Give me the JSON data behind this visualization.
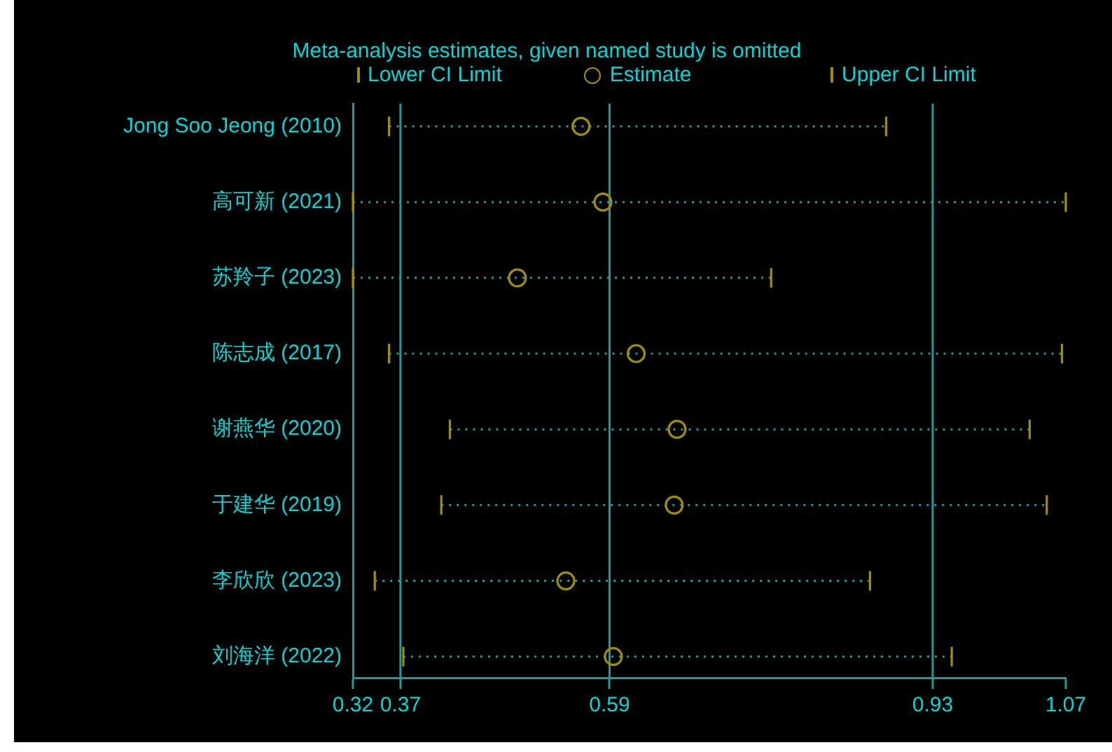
{
  "chart_data": {
    "type": "scatter",
    "orientation": "horizontal",
    "title": "Meta-analysis estimates, given named study is omitted",
    "categories": [
      "Jong Soo Jeong (2010)",
      "高可新 (2021)",
      "苏羚子 (2023)",
      "陈志成 (2017)",
      "谢燕华 (2020)",
      "于建华 (2019)",
      "李欣欣 (2023)",
      "刘海洋 (2022)"
    ],
    "series": [
      {
        "name": "Estimate",
        "color": "#a09000",
        "values": [
          0.56,
          0.583,
          0.493,
          0.618,
          0.661,
          0.658,
          0.544,
          0.594
        ],
        "errors": [
          [
            0.358,
            0.881
          ],
          [
            0.32,
            1.07
          ],
          [
            0.32,
            0.76
          ],
          [
            0.358,
            1.066
          ],
          [
            0.422,
            1.032
          ],
          [
            0.413,
            1.05
          ],
          [
            0.343,
            0.864
          ],
          [
            0.373,
            0.95
          ]
        ]
      }
    ],
    "annotations": [
      "Lower CI Limit",
      "Upper CI Limit"
    ],
    "xlim": [
      0.32,
      1.07
    ],
    "xticks": [
      0.32,
      0.37,
      0.59,
      0.93,
      1.07
    ],
    "ref_lines": [
      {
        "axis": "x",
        "value": 0.37,
        "color": "#1e9c9c"
      },
      {
        "axis": "x",
        "value": 0.59,
        "color": "#1e9c9c"
      },
      {
        "axis": "x",
        "value": 0.93,
        "color": "#1e9c9c"
      }
    ],
    "marker": "circle",
    "legend": "top"
  }
}
